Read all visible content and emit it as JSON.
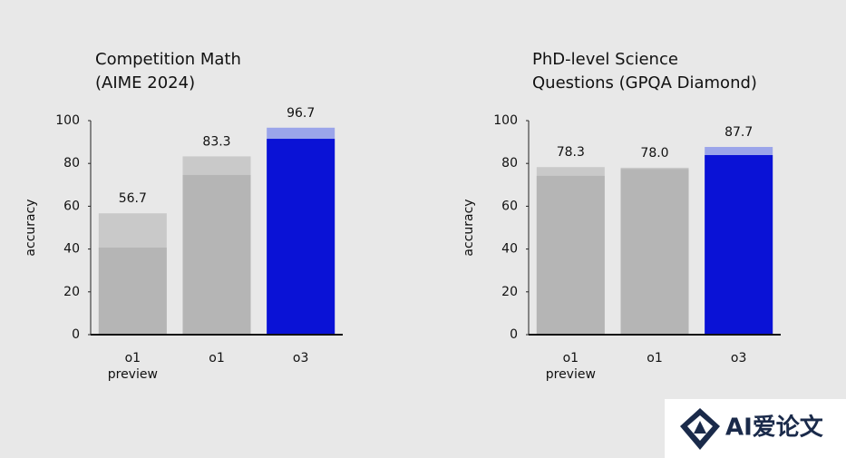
{
  "chart_data": [
    {
      "type": "bar",
      "title": [
        "Competition Math",
        "(AIME 2024)"
      ],
      "ylabel": "accuracy",
      "categories": [
        [
          "o1",
          "preview"
        ],
        [
          "o1"
        ],
        [
          "o3"
        ]
      ],
      "values": [
        56.7,
        83.3,
        96.7
      ],
      "inner_values": [
        40.7,
        74.6,
        91.5
      ],
      "colors": [
        "#c9c9c9",
        "#c9c9c9",
        "#9ba5ea"
      ],
      "inner_colors": [
        "#b5b5b5",
        "#b5b5b5",
        "#0a12d6"
      ],
      "ylim": [
        0,
        100
      ],
      "yticks": [
        0,
        20,
        40,
        60,
        80,
        100
      ]
    },
    {
      "type": "bar",
      "title": [
        "PhD-level Science",
        "Questions (GPQA Diamond)"
      ],
      "ylabel": "accuracy",
      "categories": [
        [
          "o1",
          "preview"
        ],
        [
          "o1"
        ],
        [
          "o3"
        ]
      ],
      "values": [
        78.3,
        78.0,
        87.7
      ],
      "value_labels": [
        "78.3",
        "78.0",
        "87.7"
      ],
      "inner_values": [
        74.2,
        77.4,
        83.9
      ],
      "colors": [
        "#c9c9c9",
        "#c9c9c9",
        "#9ba5ea"
      ],
      "inner_colors": [
        "#b5b5b5",
        "#b5b5b5",
        "#0a12d6"
      ],
      "ylim": [
        0,
        100
      ],
      "yticks": [
        0,
        20,
        40,
        60,
        80,
        100
      ]
    }
  ],
  "watermark": "AI爱论文"
}
